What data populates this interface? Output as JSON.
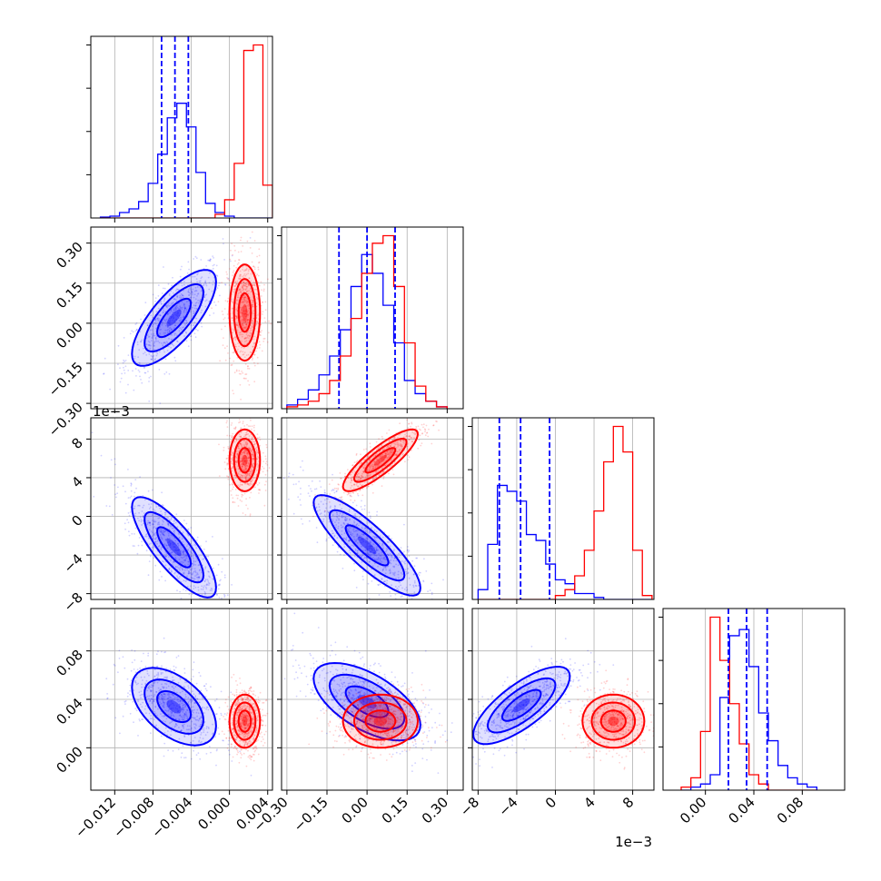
{
  "chart_data": {
    "type": "corner",
    "grid": true,
    "colors": {
      "blue": "#0000ff",
      "red": "#ff0000",
      "grid": "#b0b0b0"
    },
    "series": [
      {
        "color": "blue"
      },
      {
        "color": "red"
      }
    ],
    "params": [
      {
        "range": [
          -0.0145,
          0.0045
        ],
        "ticks": [
          "-0.012",
          "-0.008",
          "-0.004",
          "0.000",
          "0.004"
        ],
        "tick_values": [
          -0.012,
          -0.008,
          -0.004,
          0.0,
          0.004
        ],
        "offset_text": ""
      },
      {
        "range": [
          -0.32,
          0.36
        ],
        "ticks": [
          "-0.30",
          "-0.15",
          "0.00",
          "0.15",
          "0.30"
        ],
        "tick_values": [
          -0.3,
          -0.15,
          0.0,
          0.15,
          0.3
        ],
        "offset_text": ""
      },
      {
        "range": [
          -8.6,
          10.2
        ],
        "ticks": [
          "-8",
          "-4",
          "0",
          "4",
          "8"
        ],
        "tick_values": [
          -8,
          -4,
          0,
          4,
          8
        ],
        "offset_text": "1e−3"
      },
      {
        "range": [
          -0.035,
          0.115
        ],
        "ticks": [
          "0.00",
          "0.04",
          "0.08"
        ],
        "tick_values": [
          0.0,
          0.04,
          0.08
        ],
        "offset_text": ""
      }
    ],
    "histograms": [
      {
        "param": 0,
        "bins": [
          -0.0135,
          -0.0125,
          -0.0115,
          -0.0105,
          -0.0095,
          -0.0085,
          -0.0075,
          -0.0065,
          -0.0055,
          -0.0045,
          -0.0035,
          -0.0025,
          -0.0015,
          -0.0005,
          0.0005,
          0.0015,
          0.0025,
          0.0035,
          0.0045
        ],
        "blue": [
          0.005,
          0.01,
          0.03,
          0.05,
          0.09,
          0.19,
          0.35,
          0.55,
          0.63,
          0.5,
          0.25,
          0.08,
          0.03,
          0.01,
          0,
          0,
          0,
          0
        ],
        "red": [
          0,
          0,
          0,
          0,
          0,
          0,
          0,
          0,
          0,
          0,
          0,
          0,
          0.02,
          0.1,
          0.3,
          0.92,
          0.95,
          0.18
        ],
        "quantiles": [
          -0.0071,
          -0.0057,
          -0.0043
        ]
      },
      {
        "param": 1,
        "bins": [
          -0.3,
          -0.26,
          -0.22,
          -0.18,
          -0.14,
          -0.1,
          -0.06,
          -0.02,
          0.02,
          0.06,
          0.1,
          0.14,
          0.18,
          0.22,
          0.26,
          0.3
        ],
        "blue": [
          0.02,
          0.05,
          0.1,
          0.18,
          0.28,
          0.42,
          0.65,
          0.82,
          0.72,
          0.55,
          0.35,
          0.15,
          0.08,
          0.04,
          0.01
        ],
        "red": [
          0.01,
          0.02,
          0.04,
          0.08,
          0.15,
          0.28,
          0.48,
          0.72,
          0.88,
          0.92,
          0.65,
          0.35,
          0.12,
          0.04,
          0.01
        ],
        "quantiles": [
          -0.105,
          0.0,
          0.105
        ]
      },
      {
        "param": 2,
        "bins": [
          -8,
          -7,
          -6,
          -5,
          -4,
          -3,
          -2,
          -1,
          0,
          1,
          2,
          3,
          4,
          5,
          6,
          7,
          8,
          9,
          10
        ],
        "blue": [
          0.05,
          0.28,
          0.58,
          0.55,
          0.5,
          0.33,
          0.3,
          0.18,
          0.1,
          0.08,
          0.03,
          0.03,
          0.01,
          0,
          0,
          0,
          0,
          0
        ],
        "red": [
          0,
          0,
          0,
          0,
          0,
          0,
          0,
          0,
          0.02,
          0.05,
          0.12,
          0.25,
          0.45,
          0.7,
          0.88,
          0.75,
          0.25,
          0.02
        ],
        "quantiles": [
          -5.8,
          -3.6,
          -0.6
        ]
      },
      {
        "param": 3,
        "bins": [
          -0.02,
          -0.012,
          -0.004,
          0.004,
          0.012,
          0.02,
          0.028,
          0.036,
          0.044,
          0.052,
          0.06,
          0.068,
          0.076,
          0.084,
          0.092
        ],
        "blue": [
          0,
          0.01,
          0.02,
          0.05,
          0.3,
          0.5,
          0.52,
          0.4,
          0.25,
          0.16,
          0.08,
          0.04,
          0.02,
          0.01
        ],
        "red": [
          0.01,
          0.04,
          0.19,
          0.56,
          0.42,
          0.28,
          0.15,
          0.05,
          0.02,
          0,
          0,
          0,
          0,
          0
        ],
        "quantiles": [
          0.019,
          0.034,
          0.051
        ]
      }
    ],
    "scatter_blobs": [
      {
        "px": 0,
        "py": 1,
        "blue": {
          "mean": [
            -0.0058,
            0.02
          ],
          "sd": [
            0.0022,
            0.09
          ],
          "rho": 0.75
        },
        "red": {
          "mean": [
            0.0016,
            0.04
          ],
          "sd": [
            0.0008,
            0.09
          ],
          "rho": 0.0
        }
      },
      {
        "px": 0,
        "py": 2,
        "blue": {
          "mean": [
            -0.0058,
            -3.2
          ],
          "sd": [
            0.0022,
            2.6
          ],
          "rho": -0.8
        },
        "red": {
          "mean": [
            0.0016,
            5.8
          ],
          "sd": [
            0.0008,
            1.6
          ],
          "rho": 0.0
        }
      },
      {
        "px": 0,
        "py": 3,
        "blue": {
          "mean": [
            -0.0058,
            0.034
          ],
          "sd": [
            0.0022,
            0.016
          ],
          "rho": -0.5
        },
        "red": {
          "mean": [
            0.0016,
            0.022
          ],
          "sd": [
            0.0008,
            0.011
          ],
          "rho": 0.0
        }
      },
      {
        "px": 1,
        "py": 2,
        "blue": {
          "mean": [
            0.0,
            -3.0
          ],
          "sd": [
            0.1,
            2.6
          ],
          "rho": -0.85
        },
        "red": {
          "mean": [
            0.05,
            5.8
          ],
          "sd": [
            0.07,
            1.6
          ],
          "rho": 0.85
        }
      },
      {
        "px": 1,
        "py": 3,
        "blue": {
          "mean": [
            0.0,
            0.038
          ],
          "sd": [
            0.1,
            0.016
          ],
          "rho": -0.6
        },
        "red": {
          "mean": [
            0.05,
            0.022
          ],
          "sd": [
            0.07,
            0.011
          ],
          "rho": 0.0
        }
      },
      {
        "px": 2,
        "py": 3,
        "blue": {
          "mean": [
            -3.5,
            0.035
          ],
          "sd": [
            2.5,
            0.016
          ],
          "rho": 0.75
        },
        "red": {
          "mean": [
            6.0,
            0.022
          ],
          "sd": [
            1.6,
            0.011
          ],
          "rho": 0.0
        }
      }
    ]
  }
}
